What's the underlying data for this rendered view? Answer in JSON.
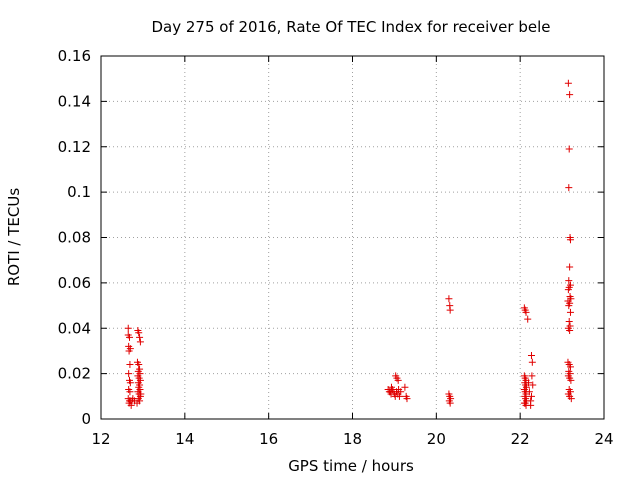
{
  "chart_data": {
    "type": "scatter",
    "title": "Day 275 of 2016, Rate Of TEC Index for receiver bele",
    "xlabel": "GPS time / hours",
    "ylabel": "ROTI / TECUs",
    "xlim": [
      12,
      24
    ],
    "ylim": [
      0,
      0.16
    ],
    "xticks": [
      "12",
      "14",
      "16",
      "18",
      "20",
      "22",
      "24"
    ],
    "yticks": [
      "0",
      "0.02",
      "0.04",
      "0.06",
      "0.08",
      "0.1",
      "0.12",
      "0.14",
      "0.16"
    ],
    "grid": true,
    "marker": "+",
    "marker_color": "#e00000",
    "series": [
      {
        "name": "ROTI",
        "points": [
          [
            12.65,
            0.04
          ],
          [
            12.65,
            0.037
          ],
          [
            12.68,
            0.036
          ],
          [
            12.66,
            0.032
          ],
          [
            12.7,
            0.031
          ],
          [
            12.67,
            0.03
          ],
          [
            12.69,
            0.024
          ],
          [
            12.66,
            0.02
          ],
          [
            12.68,
            0.017
          ],
          [
            12.7,
            0.016
          ],
          [
            12.66,
            0.013
          ],
          [
            12.69,
            0.012
          ],
          [
            12.65,
            0.009
          ],
          [
            12.68,
            0.008
          ],
          [
            12.7,
            0.008
          ],
          [
            12.67,
            0.007
          ],
          [
            12.72,
            0.006
          ],
          [
            12.74,
            0.008
          ],
          [
            12.76,
            0.009
          ],
          [
            12.8,
            0.008
          ],
          [
            12.88,
            0.039
          ],
          [
            12.9,
            0.038
          ],
          [
            12.92,
            0.036
          ],
          [
            12.94,
            0.034
          ],
          [
            12.87,
            0.025
          ],
          [
            12.9,
            0.024
          ],
          [
            12.92,
            0.022
          ],
          [
            12.89,
            0.021
          ],
          [
            12.93,
            0.02
          ],
          [
            12.88,
            0.019
          ],
          [
            12.91,
            0.018
          ],
          [
            12.94,
            0.017
          ],
          [
            12.89,
            0.016
          ],
          [
            12.92,
            0.015
          ],
          [
            12.9,
            0.014
          ],
          [
            12.93,
            0.013
          ],
          [
            12.88,
            0.012
          ],
          [
            12.91,
            0.011
          ],
          [
            12.94,
            0.01
          ],
          [
            12.89,
            0.009
          ],
          [
            12.92,
            0.008
          ],
          [
            12.86,
            0.007
          ],
          [
            12.95,
            0.011
          ],
          [
            18.85,
            0.013
          ],
          [
            18.88,
            0.012
          ],
          [
            18.9,
            0.012
          ],
          [
            18.92,
            0.011
          ],
          [
            18.95,
            0.013
          ],
          [
            18.97,
            0.012
          ],
          [
            19.0,
            0.011
          ],
          [
            19.02,
            0.01
          ],
          [
            19.05,
            0.012
          ],
          [
            19.08,
            0.011
          ],
          [
            19.1,
            0.013
          ],
          [
            19.03,
            0.019
          ],
          [
            19.06,
            0.018
          ],
          [
            19.09,
            0.017
          ],
          [
            18.93,
            0.014
          ],
          [
            19.12,
            0.01
          ],
          [
            19.15,
            0.012
          ],
          [
            19.25,
            0.014
          ],
          [
            19.28,
            0.01
          ],
          [
            19.3,
            0.009
          ],
          [
            20.3,
            0.053
          ],
          [
            20.32,
            0.05
          ],
          [
            20.33,
            0.048
          ],
          [
            20.3,
            0.011
          ],
          [
            20.32,
            0.01
          ],
          [
            20.34,
            0.009
          ],
          [
            20.31,
            0.008
          ],
          [
            20.33,
            0.007
          ],
          [
            22.1,
            0.049
          ],
          [
            22.12,
            0.048
          ],
          [
            22.14,
            0.047
          ],
          [
            22.18,
            0.044
          ],
          [
            22.1,
            0.019
          ],
          [
            22.12,
            0.018
          ],
          [
            22.14,
            0.017
          ],
          [
            22.11,
            0.016
          ],
          [
            22.13,
            0.015
          ],
          [
            22.15,
            0.014
          ],
          [
            22.1,
            0.013
          ],
          [
            22.12,
            0.012
          ],
          [
            22.14,
            0.011
          ],
          [
            22.11,
            0.01
          ],
          [
            22.13,
            0.009
          ],
          [
            22.15,
            0.008
          ],
          [
            22.1,
            0.007
          ],
          [
            22.12,
            0.007
          ],
          [
            22.14,
            0.006
          ],
          [
            22.2,
            0.016
          ],
          [
            22.22,
            0.012
          ],
          [
            22.25,
            0.008
          ],
          [
            22.27,
            0.028
          ],
          [
            22.29,
            0.025
          ],
          [
            22.28,
            0.019
          ],
          [
            22.3,
            0.015
          ],
          [
            22.27,
            0.01
          ],
          [
            22.25,
            0.006
          ],
          [
            23.15,
            0.148
          ],
          [
            23.18,
            0.143
          ],
          [
            23.17,
            0.119
          ],
          [
            23.16,
            0.102
          ],
          [
            23.19,
            0.08
          ],
          [
            23.2,
            0.079
          ],
          [
            23.18,
            0.067
          ],
          [
            23.16,
            0.061
          ],
          [
            23.2,
            0.059
          ],
          [
            23.17,
            0.058
          ],
          [
            23.15,
            0.057
          ],
          [
            23.19,
            0.054
          ],
          [
            23.21,
            0.053
          ],
          [
            23.14,
            0.052
          ],
          [
            23.18,
            0.051
          ],
          [
            23.16,
            0.05
          ],
          [
            23.2,
            0.047
          ],
          [
            23.17,
            0.043
          ],
          [
            23.19,
            0.041
          ],
          [
            23.15,
            0.04
          ],
          [
            23.18,
            0.039
          ],
          [
            23.14,
            0.025
          ],
          [
            23.17,
            0.024
          ],
          [
            23.2,
            0.023
          ],
          [
            23.16,
            0.021
          ],
          [
            23.19,
            0.02
          ],
          [
            23.15,
            0.019
          ],
          [
            23.18,
            0.018
          ],
          [
            23.21,
            0.017
          ],
          [
            23.17,
            0.013
          ],
          [
            23.2,
            0.012
          ],
          [
            23.15,
            0.011
          ],
          [
            23.18,
            0.01
          ],
          [
            23.22,
            0.009
          ]
        ]
      }
    ]
  }
}
